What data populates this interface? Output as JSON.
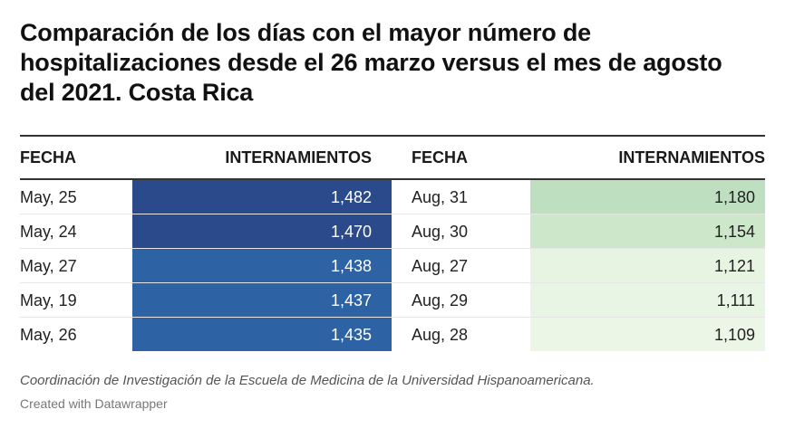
{
  "title": "Comparación de los días con el mayor número de hospitalizaciones desde el 26 marzo versus el mes de agosto del 2021. Costa Rica",
  "columns": [
    "FECHA",
    "INTERNAMIENTOS",
    "FECHA",
    "INTERNAMIENTOS"
  ],
  "rows": [
    {
      "fecha_2022": "May, 25",
      "internamientos_2022": "1,482",
      "fecha_2021": "Aug, 31",
      "internamientos_2021": "1,180",
      "color_2022": "#2b4a8b",
      "color_2021": "#bfe0c0"
    },
    {
      "fecha_2022": "May, 24",
      "internamientos_2022": "1,470",
      "fecha_2021": "Aug, 30",
      "internamientos_2021": "1,154",
      "color_2022": "#2b4a8b",
      "color_2021": "#cce7ca"
    },
    {
      "fecha_2022": "May, 27",
      "internamientos_2022": "1,438",
      "fecha_2021": "Aug, 27",
      "internamientos_2021": "1,121",
      "color_2022": "#2d63a4",
      "color_2021": "#e6f4e1"
    },
    {
      "fecha_2022": "May, 19",
      "internamientos_2022": "1,437",
      "fecha_2021": "Aug, 29",
      "internamientos_2021": "1,111",
      "color_2022": "#2d63a4",
      "color_2021": "#e9f5e4"
    },
    {
      "fecha_2022": "May, 26",
      "internamientos_2022": "1,435",
      "fecha_2021": "Aug, 28",
      "internamientos_2021": "1,109",
      "color_2022": "#2d63a4",
      "color_2021": "#ebf6e6"
    }
  ],
  "chart_data": {
    "type": "table",
    "title": "Comparación de los días con el mayor número de hospitalizaciones desde el 26 marzo versus el mes de agosto del 2021. Costa Rica",
    "columns": [
      "FECHA",
      "INTERNAMIENTOS",
      "FECHA",
      "INTERNAMIENTOS"
    ],
    "rows": [
      [
        "May, 25",
        1482,
        "Aug, 31",
        1180
      ],
      [
        "May, 24",
        1470,
        "Aug, 30",
        1154
      ],
      [
        "May, 27",
        1438,
        "Aug, 27",
        1121
      ],
      [
        "May, 19",
        1437,
        "Aug, 29",
        1111
      ],
      [
        "May, 26",
        1435,
        "Aug, 28",
        1109
      ]
    ]
  },
  "source": "Coordinación de Investigación de la Escuela de Medicina de la Universidad Hispanoamericana.",
  "credit": "Created with Datawrapper"
}
